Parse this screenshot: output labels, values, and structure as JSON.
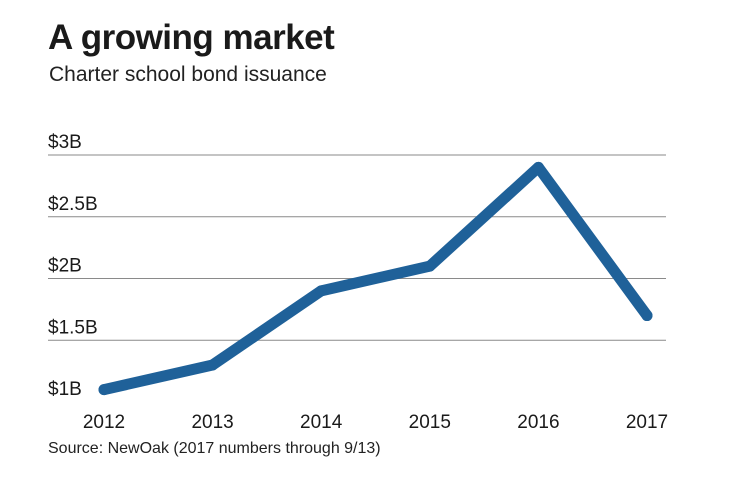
{
  "title": "A growing market",
  "subtitle": "Charter school bond issuance",
  "source": "Source: NewOak (2017 numbers through 9/13)",
  "colors": {
    "line": "#1f6199",
    "grid": "#8a8a8a",
    "text": "#1a1a1a"
  },
  "chart_data": {
    "type": "line",
    "x": [
      "2012",
      "2013",
      "2014",
      "2015",
      "2016",
      "2017"
    ],
    "series": [
      {
        "values": [
          1.1,
          1.3,
          1.9,
          2.1,
          2.9,
          1.7
        ]
      }
    ],
    "ylim": [
      1,
      3
    ],
    "yticks": [
      1,
      1.5,
      2,
      2.5,
      3
    ],
    "ytick_labels": [
      "$1B",
      "$1.5B",
      "$2B",
      "$2.5B",
      "$3B"
    ],
    "grid": true,
    "xlabel": "",
    "ylabel": ""
  }
}
